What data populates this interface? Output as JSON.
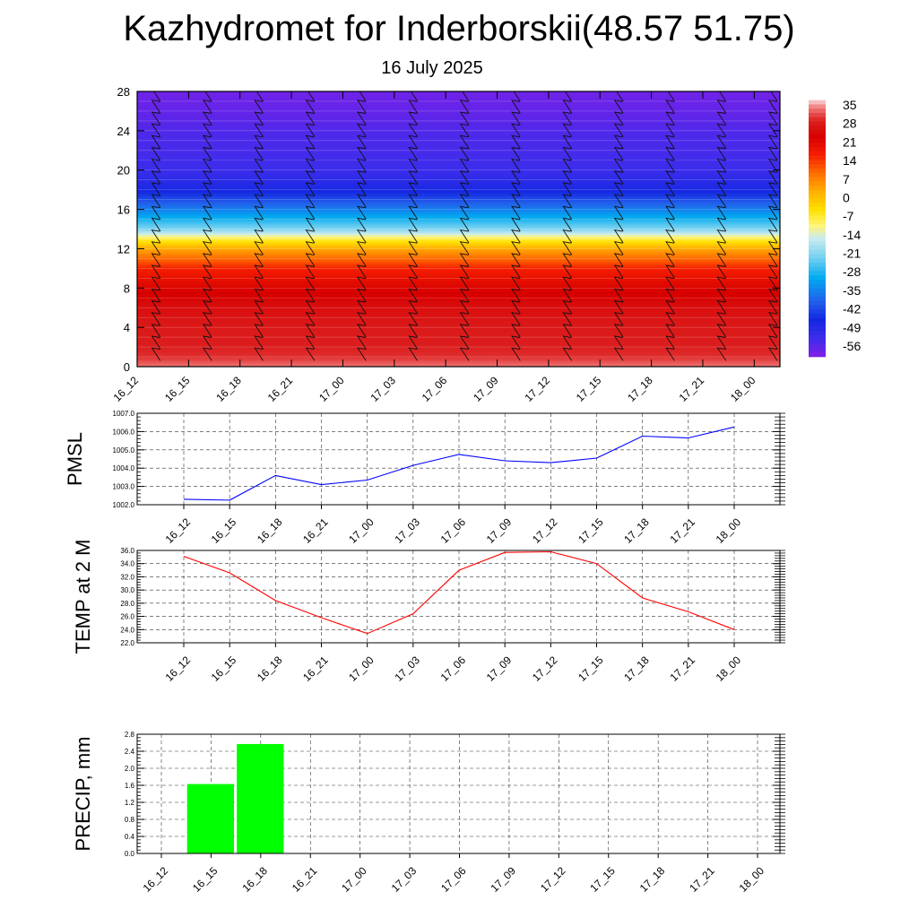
{
  "title": "Kazhydromet for Inderborskii(48.57 51.75)",
  "subtitle": "16 July 2025",
  "colors": {
    "pmsl_line": "#0000ff",
    "temp_line": "#ff0000",
    "precip_bar": "#00ff00"
  },
  "chart_data": [
    {
      "type": "heatmap",
      "name": "cross-section",
      "x_categories": [
        "16_12",
        "16_15",
        "16_18",
        "16_21",
        "17_00",
        "17_03",
        "17_06",
        "17_09",
        "17_12",
        "17_15",
        "17_18",
        "17_21",
        "18_00"
      ],
      "yticks": [
        "0",
        "4",
        "8",
        "12",
        "16",
        "20",
        "24",
        "28"
      ],
      "ylim": [
        0,
        28
      ],
      "colorbar_labels": [
        "35",
        "28",
        "21",
        "14",
        "7",
        "0",
        "-7",
        "-14",
        "-21",
        "-28",
        "-35",
        "-42",
        "-49",
        "-56"
      ],
      "colorbar_range": [
        -60,
        38
      ],
      "approx_profile": {
        "levels": [
          0,
          1,
          2,
          4,
          6,
          8,
          10,
          12,
          13,
          14,
          16,
          18,
          20,
          22,
          24,
          26,
          28
        ],
        "values": [
          35,
          31,
          30,
          29,
          27,
          23,
          17,
          4,
          -7,
          -21,
          -35,
          -47,
          -53,
          -54,
          -55,
          -57,
          -58
        ]
      },
      "wind_barbs": true
    },
    {
      "type": "line",
      "name": "pmsl",
      "ylabel": "PMSL",
      "ylim": [
        1002.0,
        1007.0
      ],
      "yticks": [
        "1002.0",
        "1003.0",
        "1004.0",
        "1005.0",
        "1006.0",
        "1007.0"
      ],
      "categories": [
        "16_12",
        "16_15",
        "16_18",
        "16_21",
        "17_00",
        "17_03",
        "17_06",
        "17_09",
        "17_12",
        "17_15",
        "17_18",
        "17_21",
        "18_00"
      ],
      "values": [
        1002.3,
        1002.25,
        1003.6,
        1003.1,
        1003.35,
        1004.15,
        1004.75,
        1004.4,
        1004.3,
        1004.55,
        1005.75,
        1005.65,
        1006.25
      ],
      "grid": true
    },
    {
      "type": "line",
      "name": "temp",
      "ylabel": "TEMP at 2 M",
      "ylim": [
        22.0,
        36.0
      ],
      "yticks": [
        "22.0",
        "24.0",
        "26.0",
        "28.0",
        "30.0",
        "32.0",
        "34.0",
        "36.0"
      ],
      "categories": [
        "16_12",
        "16_15",
        "16_18",
        "16_21",
        "17_00",
        "17_03",
        "17_06",
        "17_09",
        "17_12",
        "17_15",
        "17_18",
        "17_21",
        "18_00"
      ],
      "values": [
        35.1,
        32.6,
        28.4,
        25.8,
        23.4,
        26.4,
        33.0,
        35.7,
        35.8,
        34.0,
        28.8,
        26.7,
        24.0
      ],
      "grid": true
    },
    {
      "type": "bar",
      "name": "precip",
      "ylabel": "PRECIP, mm",
      "ylim": [
        0.0,
        2.8
      ],
      "yticks": [
        "0.0",
        "0.4",
        "0.8",
        "1.2",
        "1.6",
        "2.0",
        "2.4",
        "2.8"
      ],
      "categories": [
        "16_12",
        "16_15",
        "16_18",
        "16_21",
        "17_00",
        "17_03",
        "17_06",
        "17_09",
        "17_12",
        "17_15",
        "17_18",
        "17_21",
        "18_00"
      ],
      "values": [
        0,
        1.63,
        2.57,
        0,
        0,
        0,
        0,
        0,
        0,
        0,
        0,
        0,
        0
      ],
      "grid": true
    }
  ]
}
